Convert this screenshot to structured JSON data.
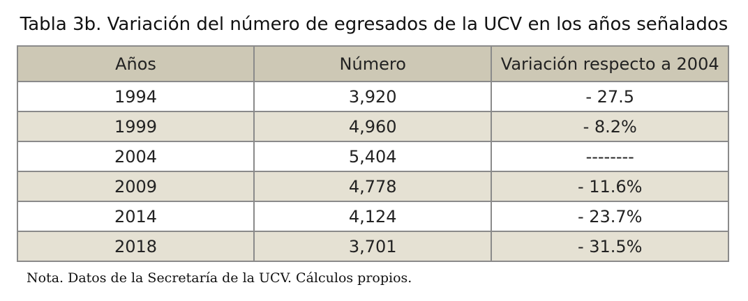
{
  "title": "Tabla 3b. Variación del número de egresados de la UCV en los años señalados",
  "table": {
    "header": [
      "Años",
      "Número",
      "Variación respecto a 2004"
    ],
    "rows": [
      [
        "1994",
        "3,920",
        "- 27.5"
      ],
      [
        "1999",
        "4,960",
        "- 8.2%"
      ],
      [
        "2004",
        "5,404",
        "--------"
      ],
      [
        "2009",
        "4,778",
        "- 11.6%"
      ],
      [
        "2014",
        "4,124",
        "- 23.7%"
      ],
      [
        "2018",
        "3,701",
        "- 31.5%"
      ]
    ]
  },
  "note": "Nota. Datos de la Secretaría de la UCV. Cálculos propios."
}
